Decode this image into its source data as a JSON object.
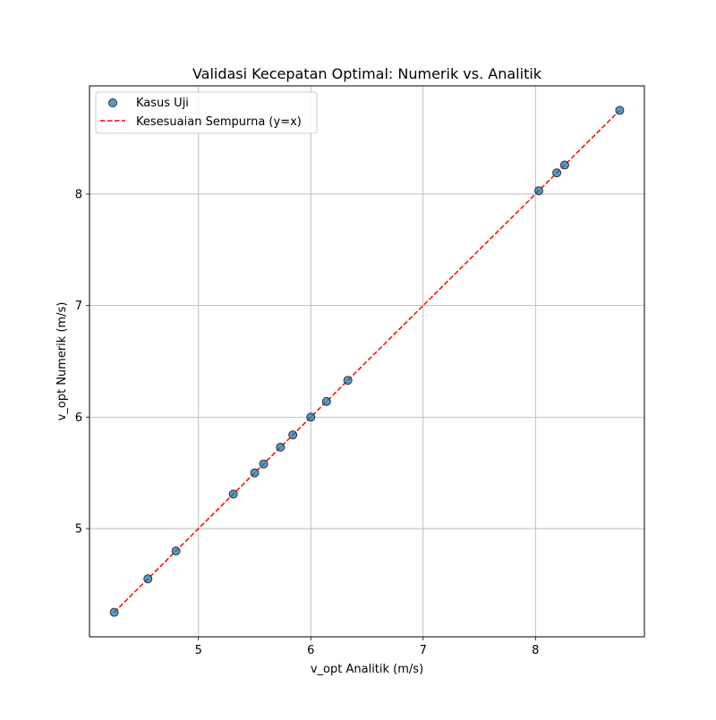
{
  "chart_data": {
    "type": "scatter",
    "title": "Validasi Kecepatan Optimal: Numerik vs. Analitik",
    "xlabel": "v_opt Analitik (m/s)",
    "ylabel": "v_opt Numerik (m/s)",
    "xlim": [
      4.03,
      8.97
    ],
    "ylim": [
      4.03,
      8.97
    ],
    "xticks": [
      5,
      6,
      7,
      8
    ],
    "yticks": [
      5,
      6,
      7,
      8
    ],
    "grid": true,
    "legend_position": "top-left",
    "series": [
      {
        "name": "Kasus Uji",
        "kind": "scatter",
        "color": "#1f77b4",
        "edge_color": "#333333",
        "x": [
          4.25,
          4.55,
          4.8,
          5.31,
          5.5,
          5.58,
          5.73,
          5.84,
          6.0,
          6.14,
          6.33,
          8.03,
          8.19,
          8.26,
          8.75
        ],
        "y": [
          4.25,
          4.55,
          4.8,
          5.31,
          5.5,
          5.58,
          5.73,
          5.84,
          6.0,
          6.14,
          6.33,
          8.03,
          8.19,
          8.26,
          8.75
        ]
      },
      {
        "name": "Kesesuaian Sempurna (y=x)",
        "kind": "line",
        "style": "dashed",
        "color": "#ff0000",
        "x": [
          4.25,
          8.75
        ],
        "y": [
          4.25,
          8.75
        ]
      }
    ]
  }
}
